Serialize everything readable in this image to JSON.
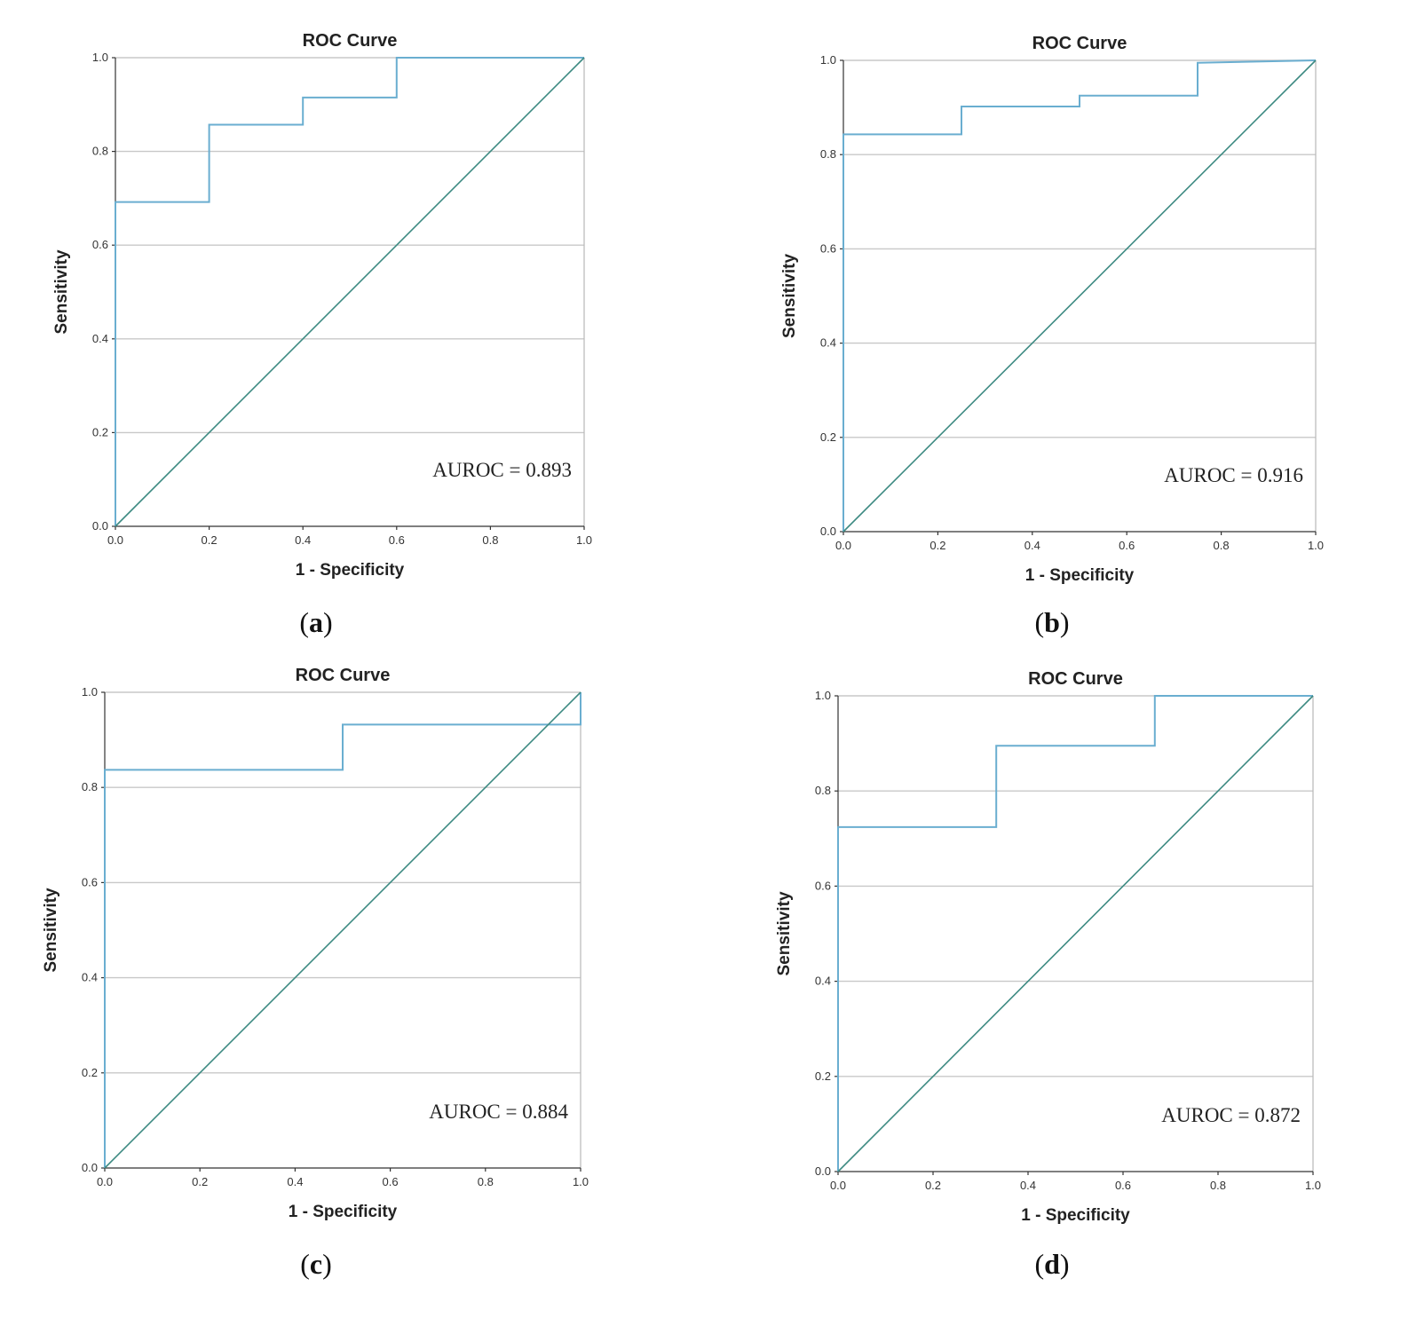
{
  "figure": {
    "panels": [
      {
        "caption_letter": "a",
        "chart_data": {
          "type": "line",
          "title": "ROC Curve",
          "xlabel": "1 - Specificity",
          "ylabel": "Sensitivity",
          "xlim": [
            0,
            1
          ],
          "ylim": [
            0,
            1
          ],
          "xticks": [
            "0.0",
            "0.2",
            "0.4",
            "0.6",
            "0.8",
            "1.0"
          ],
          "yticks": [
            "0.0",
            "0.2",
            "0.4",
            "0.6",
            "0.8",
            "1.0"
          ],
          "grid": "horizontal",
          "annotation": "AUROC = 0.893",
          "series": [
            {
              "name": "ROC",
              "color": "#6aaed0",
              "x": [
                0,
                0,
                0.2,
                0.2,
                0.4,
                0.4,
                0.6,
                0.6,
                1.0
              ],
              "y": [
                0,
                0.692,
                0.692,
                0.857,
                0.857,
                0.915,
                0.915,
                1.0,
                1.0
              ]
            },
            {
              "name": "Reference",
              "color": "#3d8a82",
              "x": [
                0,
                1
              ],
              "y": [
                0,
                1
              ]
            }
          ]
        }
      },
      {
        "caption_letter": "b",
        "chart_data": {
          "type": "line",
          "title": "ROC Curve",
          "xlabel": "1 - Specificity",
          "ylabel": "Sensitivity",
          "xlim": [
            0,
            1
          ],
          "ylim": [
            0,
            1
          ],
          "xticks": [
            "0.0",
            "0.2",
            "0.4",
            "0.6",
            "0.8",
            "1.0"
          ],
          "yticks": [
            "0.0",
            "0.2",
            "0.4",
            "0.6",
            "0.8",
            "1.0"
          ],
          "grid": "horizontal",
          "annotation": "AUROC = 0.916",
          "series": [
            {
              "name": "ROC",
              "color": "#6aaed0",
              "x": [
                0,
                0,
                0.25,
                0.25,
                0.5,
                0.5,
                0.75,
                0.75,
                1.0
              ],
              "y": [
                0,
                0.843,
                0.843,
                0.902,
                0.902,
                0.925,
                0.925,
                0.995,
                1.0
              ]
            },
            {
              "name": "Reference",
              "color": "#3d8a82",
              "x": [
                0,
                1
              ],
              "y": [
                0,
                1
              ]
            }
          ]
        }
      },
      {
        "caption_letter": "c",
        "chart_data": {
          "type": "line",
          "title": "ROC Curve",
          "xlabel": "1 - Specificity",
          "ylabel": "Sensitivity",
          "xlim": [
            0,
            1
          ],
          "ylim": [
            0,
            1
          ],
          "xticks": [
            "0.0",
            "0.2",
            "0.4",
            "0.6",
            "0.8",
            "1.0"
          ],
          "yticks": [
            "0.0",
            "0.2",
            "0.4",
            "0.6",
            "0.8",
            "1.0"
          ],
          "grid": "horizontal",
          "annotation": "AUROC = 0.884",
          "series": [
            {
              "name": "ROC",
              "color": "#6aaed0",
              "x": [
                0,
                0,
                0.5,
                0.5,
                1.0,
                1.0
              ],
              "y": [
                0,
                0.837,
                0.837,
                0.932,
                0.932,
                1.0
              ]
            },
            {
              "name": "Reference",
              "color": "#3d8a82",
              "x": [
                0,
                1
              ],
              "y": [
                0,
                1
              ]
            }
          ]
        }
      },
      {
        "caption_letter": "d",
        "chart_data": {
          "type": "line",
          "title": "ROC Curve",
          "xlabel": "1 - Specificity",
          "ylabel": "Sensitivity",
          "xlim": [
            0,
            1
          ],
          "ylim": [
            0,
            1
          ],
          "xticks": [
            "0.0",
            "0.2",
            "0.4",
            "0.6",
            "0.8",
            "1.0"
          ],
          "yticks": [
            "0.0",
            "0.2",
            "0.4",
            "0.6",
            "0.8",
            "1.0"
          ],
          "grid": "horizontal",
          "annotation": "AUROC = 0.872",
          "series": [
            {
              "name": "ROC",
              "color": "#6aaed0",
              "x": [
                0,
                0,
                0.333,
                0.333,
                0.667,
                0.667,
                1.0
              ],
              "y": [
                0,
                0.724,
                0.724,
                0.895,
                0.895,
                1.0,
                1.0
              ]
            },
            {
              "name": "Reference",
              "color": "#3d8a82",
              "x": [
                0,
                1
              ],
              "y": [
                0,
                1
              ]
            }
          ]
        }
      }
    ]
  }
}
